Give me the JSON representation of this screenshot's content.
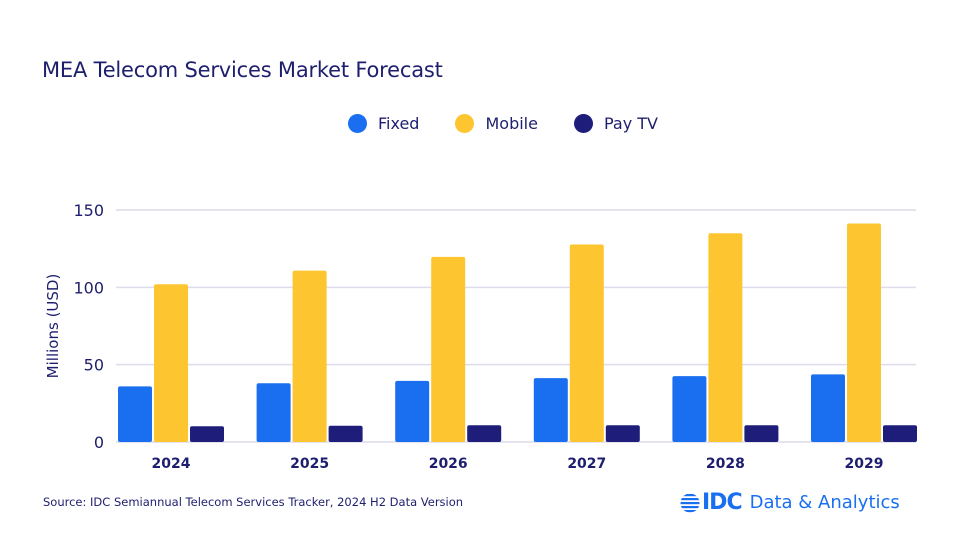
{
  "chart_data": {
    "type": "bar",
    "title": "MEA Telecom Services Market Forecast",
    "xlabel": "",
    "ylabel": "Millions (USD)",
    "ylim": [
      0,
      150
    ],
    "yticks": [
      0,
      50,
      100,
      150
    ],
    "grid": true,
    "legend_position": "top-center",
    "categories": [
      "2024",
      "2025",
      "2026",
      "2027",
      "2028",
      "2029"
    ],
    "series": [
      {
        "name": "Fixed",
        "color": "#1a6ff0",
        "values": [
          36,
          38,
          39.5,
          41.3,
          42.6,
          43.7
        ]
      },
      {
        "name": "Mobile",
        "color": "#fdc52f",
        "values": [
          102,
          110.8,
          119.7,
          127.7,
          135,
          141.3
        ]
      },
      {
        "name": "Pay TV",
        "color": "#1e1e7a",
        "values": [
          10.2,
          10.5,
          10.8,
          10.8,
          10.8,
          10.8
        ]
      }
    ]
  },
  "footer": {
    "source": "Source: IDC Semiannual Telecom Services Tracker, 2024 H2 Data Version",
    "brand_name": "IDC",
    "brand_tagline": "Data & Analytics"
  },
  "icons": {
    "brand_logo": "idc-globe-icon"
  }
}
